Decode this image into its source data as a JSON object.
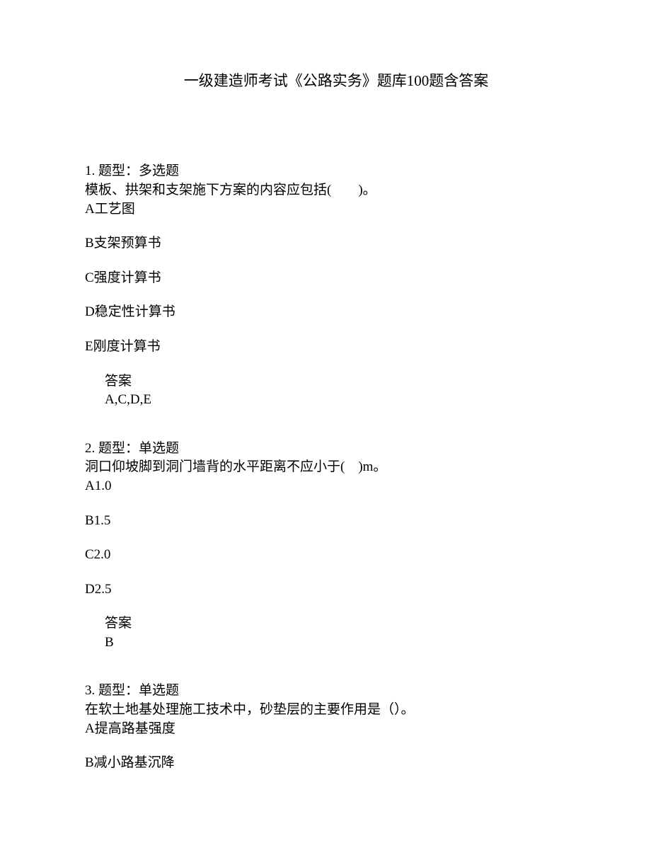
{
  "title": "一级建造师考试《公路实务》题库100题含答案",
  "questions": [
    {
      "number": "1.",
      "type_label": "题型：多选题",
      "text": "模板、拱架和支架施下方案的内容应包括(　　)。",
      "options": [
        "A工艺图",
        "B支架预算书",
        "C强度计算书",
        "D稳定性计算书",
        "E刚度计算书"
      ],
      "answer_label": "答案",
      "answer_value": "A,C,D,E"
    },
    {
      "number": "2.",
      "type_label": "题型：单选题",
      "text": "洞口仰坡脚到洞门墙背的水平距离不应小于(　)m。",
      "options": [
        "A1.0",
        "B1.5",
        "C2.0",
        "D2.5"
      ],
      "answer_label": "答案",
      "answer_value": "B"
    },
    {
      "number": "3.",
      "type_label": "题型：单选题",
      "text": "在软土地基处理施工技术中，砂垫层的主要作用是（）。",
      "options": [
        "A提高路基强度",
        "B减小路基沉降"
      ],
      "answer_label": "",
      "answer_value": ""
    }
  ]
}
